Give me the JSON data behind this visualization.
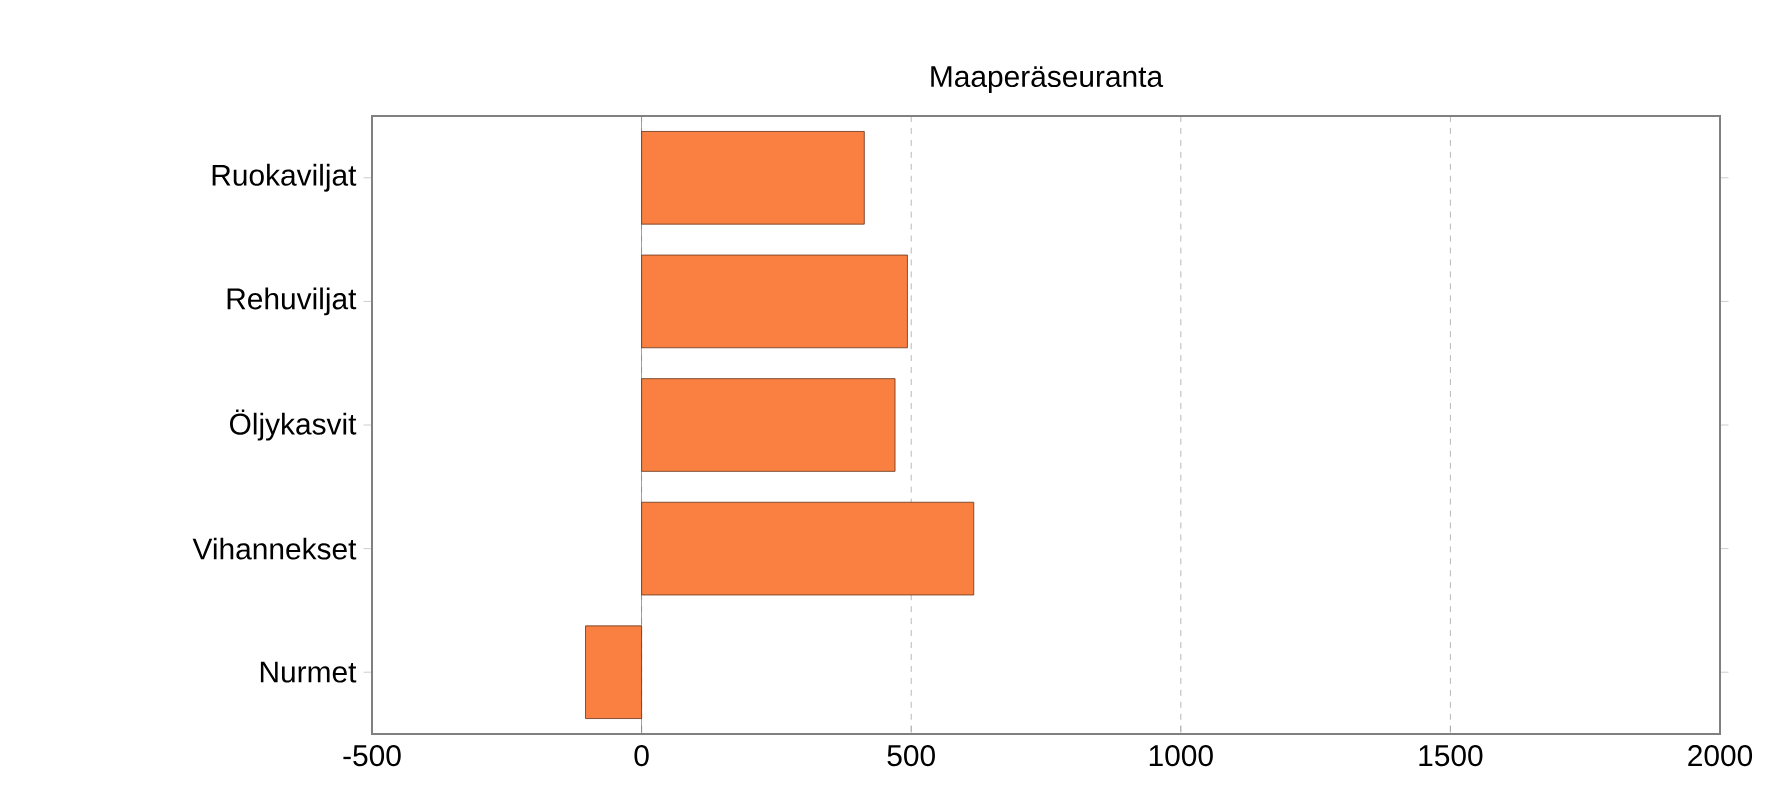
{
  "chart_data": {
    "type": "bar",
    "orientation": "horizontal",
    "title": "Maaperäseuranta",
    "categories": [
      "Ruokaviljat",
      "Rehuviljat",
      "Öljykasvit",
      "Vihannekset",
      "Nurmet"
    ],
    "values": [
      413,
      493,
      470,
      616,
      -104
    ],
    "color": "#f98040",
    "xlim": [
      -500,
      2000
    ],
    "xticks": [
      -500,
      0,
      500,
      1000,
      1500,
      2000
    ],
    "grid": "x"
  }
}
